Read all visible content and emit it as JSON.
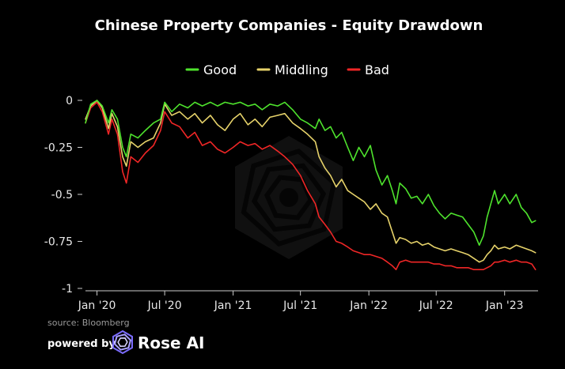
{
  "chart_data": {
    "type": "line",
    "title": "Chinese Property Companies - Equity Drawdown",
    "xlabel": "",
    "ylabel": "",
    "ylim": [
      -1,
      0
    ],
    "yticks": [
      0,
      -0.25,
      -0.5,
      -0.75,
      -1
    ],
    "ytick_labels": [
      "0",
      "-0.25",
      "-0.5",
      "-0.75",
      "-1"
    ],
    "xlim": [
      "2019-12-01",
      "2023-04-01"
    ],
    "xticks": [
      "2020-01-01",
      "2020-07-01",
      "2021-01-01",
      "2021-07-01",
      "2022-01-01",
      "2022-07-01",
      "2023-01-01"
    ],
    "xtick_labels": [
      "Jan '20",
      "Jul '20",
      "Jan '21",
      "Jul '21",
      "Jan '22",
      "Jul '22",
      "Jan '23"
    ],
    "grid": false,
    "legend_position": "top",
    "series": [
      {
        "name": "Good",
        "color": "#4ee32d",
        "points": [
          [
            "2019-12-01",
            -0.12
          ],
          [
            "2019-12-15",
            -0.02
          ],
          [
            "2020-01-01",
            0.0
          ],
          [
            "2020-01-15",
            -0.03
          ],
          [
            "2020-02-01",
            -0.12
          ],
          [
            "2020-02-10",
            -0.05
          ],
          [
            "2020-02-25",
            -0.1
          ],
          [
            "2020-03-10",
            -0.25
          ],
          [
            "2020-03-20",
            -0.3
          ],
          [
            "2020-04-01",
            -0.18
          ],
          [
            "2020-04-20",
            -0.2
          ],
          [
            "2020-05-10",
            -0.16
          ],
          [
            "2020-06-01",
            -0.12
          ],
          [
            "2020-06-20",
            -0.1
          ],
          [
            "2020-07-01",
            -0.01
          ],
          [
            "2020-07-20",
            -0.06
          ],
          [
            "2020-08-10",
            -0.02
          ],
          [
            "2020-09-01",
            -0.04
          ],
          [
            "2020-09-20",
            -0.01
          ],
          [
            "2020-10-10",
            -0.03
          ],
          [
            "2020-11-01",
            -0.01
          ],
          [
            "2020-11-20",
            -0.03
          ],
          [
            "2020-12-10",
            -0.01
          ],
          [
            "2021-01-01",
            -0.02
          ],
          [
            "2021-01-20",
            -0.01
          ],
          [
            "2021-02-10",
            -0.03
          ],
          [
            "2021-03-01",
            -0.02
          ],
          [
            "2021-03-20",
            -0.05
          ],
          [
            "2021-04-10",
            -0.02
          ],
          [
            "2021-05-01",
            -0.03
          ],
          [
            "2021-05-20",
            -0.01
          ],
          [
            "2021-06-10",
            -0.05
          ],
          [
            "2021-07-01",
            -0.1
          ],
          [
            "2021-07-20",
            -0.12
          ],
          [
            "2021-08-10",
            -0.15
          ],
          [
            "2021-08-20",
            -0.1
          ],
          [
            "2021-09-05",
            -0.16
          ],
          [
            "2021-09-20",
            -0.14
          ],
          [
            "2021-10-05",
            -0.2
          ],
          [
            "2021-10-20",
            -0.17
          ],
          [
            "2021-11-05",
            -0.25
          ],
          [
            "2021-11-20",
            -0.32
          ],
          [
            "2021-12-05",
            -0.25
          ],
          [
            "2021-12-20",
            -0.3
          ],
          [
            "2022-01-05",
            -0.24
          ],
          [
            "2022-01-20",
            -0.37
          ],
          [
            "2022-02-05",
            -0.45
          ],
          [
            "2022-02-20",
            -0.4
          ],
          [
            "2022-03-05",
            -0.48
          ],
          [
            "2022-03-15",
            -0.55
          ],
          [
            "2022-03-25",
            -0.44
          ],
          [
            "2022-04-10",
            -0.47
          ],
          [
            "2022-04-25",
            -0.52
          ],
          [
            "2022-05-10",
            -0.51
          ],
          [
            "2022-05-25",
            -0.55
          ],
          [
            "2022-06-10",
            -0.5
          ],
          [
            "2022-06-25",
            -0.56
          ],
          [
            "2022-07-10",
            -0.6
          ],
          [
            "2022-07-25",
            -0.63
          ],
          [
            "2022-08-10",
            -0.6
          ],
          [
            "2022-08-25",
            -0.61
          ],
          [
            "2022-09-10",
            -0.62
          ],
          [
            "2022-09-25",
            -0.66
          ],
          [
            "2022-10-10",
            -0.7
          ],
          [
            "2022-10-25",
            -0.77
          ],
          [
            "2022-11-05",
            -0.72
          ],
          [
            "2022-11-15",
            -0.62
          ],
          [
            "2022-11-25",
            -0.55
          ],
          [
            "2022-12-05",
            -0.48
          ],
          [
            "2022-12-15",
            -0.55
          ],
          [
            "2023-01-01",
            -0.5
          ],
          [
            "2023-01-15",
            -0.55
          ],
          [
            "2023-02-01",
            -0.5
          ],
          [
            "2023-02-15",
            -0.57
          ],
          [
            "2023-03-01",
            -0.6
          ],
          [
            "2023-03-15",
            -0.65
          ],
          [
            "2023-03-25",
            -0.64
          ]
        ]
      },
      {
        "name": "Middling",
        "color": "#e6d26a",
        "points": [
          [
            "2019-12-01",
            -0.1
          ],
          [
            "2019-12-15",
            -0.03
          ],
          [
            "2020-01-01",
            0.0
          ],
          [
            "2020-01-15",
            -0.04
          ],
          [
            "2020-02-01",
            -0.15
          ],
          [
            "2020-02-10",
            -0.07
          ],
          [
            "2020-02-25",
            -0.14
          ],
          [
            "2020-03-10",
            -0.3
          ],
          [
            "2020-03-20",
            -0.35
          ],
          [
            "2020-04-01",
            -0.22
          ],
          [
            "2020-04-20",
            -0.25
          ],
          [
            "2020-05-10",
            -0.22
          ],
          [
            "2020-06-01",
            -0.2
          ],
          [
            "2020-06-20",
            -0.12
          ],
          [
            "2020-07-01",
            -0.02
          ],
          [
            "2020-07-20",
            -0.08
          ],
          [
            "2020-08-10",
            -0.06
          ],
          [
            "2020-09-01",
            -0.1
          ],
          [
            "2020-09-20",
            -0.07
          ],
          [
            "2020-10-10",
            -0.12
          ],
          [
            "2020-11-01",
            -0.08
          ],
          [
            "2020-11-20",
            -0.13
          ],
          [
            "2020-12-10",
            -0.16
          ],
          [
            "2021-01-01",
            -0.1
          ],
          [
            "2021-01-20",
            -0.07
          ],
          [
            "2021-02-10",
            -0.13
          ],
          [
            "2021-03-01",
            -0.1
          ],
          [
            "2021-03-20",
            -0.14
          ],
          [
            "2021-04-10",
            -0.09
          ],
          [
            "2021-05-01",
            -0.08
          ],
          [
            "2021-05-20",
            -0.07
          ],
          [
            "2021-06-10",
            -0.12
          ],
          [
            "2021-07-01",
            -0.15
          ],
          [
            "2021-07-20",
            -0.18
          ],
          [
            "2021-08-10",
            -0.22
          ],
          [
            "2021-08-20",
            -0.3
          ],
          [
            "2021-09-05",
            -0.36
          ],
          [
            "2021-09-20",
            -0.4
          ],
          [
            "2021-10-05",
            -0.46
          ],
          [
            "2021-10-20",
            -0.42
          ],
          [
            "2021-11-05",
            -0.48
          ],
          [
            "2021-11-20",
            -0.5
          ],
          [
            "2021-12-05",
            -0.52
          ],
          [
            "2021-12-20",
            -0.54
          ],
          [
            "2022-01-05",
            -0.58
          ],
          [
            "2022-01-20",
            -0.55
          ],
          [
            "2022-02-05",
            -0.6
          ],
          [
            "2022-02-20",
            -0.62
          ],
          [
            "2022-03-05",
            -0.7
          ],
          [
            "2022-03-15",
            -0.76
          ],
          [
            "2022-03-25",
            -0.73
          ],
          [
            "2022-04-10",
            -0.74
          ],
          [
            "2022-04-25",
            -0.76
          ],
          [
            "2022-05-10",
            -0.75
          ],
          [
            "2022-05-25",
            -0.77
          ],
          [
            "2022-06-10",
            -0.76
          ],
          [
            "2022-06-25",
            -0.78
          ],
          [
            "2022-07-10",
            -0.79
          ],
          [
            "2022-07-25",
            -0.8
          ],
          [
            "2022-08-10",
            -0.79
          ],
          [
            "2022-08-25",
            -0.8
          ],
          [
            "2022-09-10",
            -0.81
          ],
          [
            "2022-09-25",
            -0.82
          ],
          [
            "2022-10-10",
            -0.84
          ],
          [
            "2022-10-25",
            -0.86
          ],
          [
            "2022-11-05",
            -0.85
          ],
          [
            "2022-11-15",
            -0.82
          ],
          [
            "2022-11-25",
            -0.8
          ],
          [
            "2022-12-05",
            -0.77
          ],
          [
            "2022-12-15",
            -0.79
          ],
          [
            "2023-01-01",
            -0.78
          ],
          [
            "2023-01-15",
            -0.79
          ],
          [
            "2023-02-01",
            -0.77
          ],
          [
            "2023-02-15",
            -0.78
          ],
          [
            "2023-03-01",
            -0.79
          ],
          [
            "2023-03-15",
            -0.8
          ],
          [
            "2023-03-25",
            -0.81
          ]
        ]
      },
      {
        "name": "Bad",
        "color": "#ef2626",
        "points": [
          [
            "2019-12-01",
            -0.12
          ],
          [
            "2019-12-15",
            -0.04
          ],
          [
            "2020-01-01",
            -0.01
          ],
          [
            "2020-01-15",
            -0.06
          ],
          [
            "2020-02-01",
            -0.18
          ],
          [
            "2020-02-10",
            -0.1
          ],
          [
            "2020-02-25",
            -0.18
          ],
          [
            "2020-03-10",
            -0.38
          ],
          [
            "2020-03-20",
            -0.44
          ],
          [
            "2020-04-01",
            -0.3
          ],
          [
            "2020-04-20",
            -0.33
          ],
          [
            "2020-05-10",
            -0.28
          ],
          [
            "2020-06-01",
            -0.24
          ],
          [
            "2020-06-20",
            -0.16
          ],
          [
            "2020-07-01",
            -0.06
          ],
          [
            "2020-07-20",
            -0.12
          ],
          [
            "2020-08-10",
            -0.14
          ],
          [
            "2020-09-01",
            -0.2
          ],
          [
            "2020-09-20",
            -0.17
          ],
          [
            "2020-10-10",
            -0.24
          ],
          [
            "2020-11-01",
            -0.22
          ],
          [
            "2020-11-20",
            -0.26
          ],
          [
            "2020-12-10",
            -0.28
          ],
          [
            "2021-01-01",
            -0.25
          ],
          [
            "2021-01-20",
            -0.22
          ],
          [
            "2021-02-10",
            -0.24
          ],
          [
            "2021-03-01",
            -0.23
          ],
          [
            "2021-03-20",
            -0.26
          ],
          [
            "2021-04-10",
            -0.24
          ],
          [
            "2021-05-01",
            -0.27
          ],
          [
            "2021-05-20",
            -0.3
          ],
          [
            "2021-06-10",
            -0.34
          ],
          [
            "2021-07-01",
            -0.4
          ],
          [
            "2021-07-20",
            -0.48
          ],
          [
            "2021-08-10",
            -0.55
          ],
          [
            "2021-08-20",
            -0.62
          ],
          [
            "2021-09-05",
            -0.66
          ],
          [
            "2021-09-20",
            -0.7
          ],
          [
            "2021-10-05",
            -0.75
          ],
          [
            "2021-10-20",
            -0.76
          ],
          [
            "2021-11-05",
            -0.78
          ],
          [
            "2021-11-20",
            -0.8
          ],
          [
            "2021-12-05",
            -0.81
          ],
          [
            "2021-12-20",
            -0.82
          ],
          [
            "2022-01-05",
            -0.82
          ],
          [
            "2022-01-20",
            -0.83
          ],
          [
            "2022-02-05",
            -0.84
          ],
          [
            "2022-02-20",
            -0.86
          ],
          [
            "2022-03-05",
            -0.88
          ],
          [
            "2022-03-15",
            -0.9
          ],
          [
            "2022-03-25",
            -0.86
          ],
          [
            "2022-04-10",
            -0.85
          ],
          [
            "2022-04-25",
            -0.86
          ],
          [
            "2022-05-10",
            -0.86
          ],
          [
            "2022-05-25",
            -0.86
          ],
          [
            "2022-06-10",
            -0.86
          ],
          [
            "2022-06-25",
            -0.87
          ],
          [
            "2022-07-10",
            -0.87
          ],
          [
            "2022-07-25",
            -0.88
          ],
          [
            "2022-08-10",
            -0.88
          ],
          [
            "2022-08-25",
            -0.89
          ],
          [
            "2022-09-10",
            -0.89
          ],
          [
            "2022-09-25",
            -0.89
          ],
          [
            "2022-10-10",
            -0.9
          ],
          [
            "2022-10-25",
            -0.9
          ],
          [
            "2022-11-05",
            -0.9
          ],
          [
            "2022-11-15",
            -0.89
          ],
          [
            "2022-11-25",
            -0.88
          ],
          [
            "2022-12-05",
            -0.86
          ],
          [
            "2022-12-15",
            -0.86
          ],
          [
            "2023-01-01",
            -0.85
          ],
          [
            "2023-01-15",
            -0.86
          ],
          [
            "2023-02-01",
            -0.85
          ],
          [
            "2023-02-15",
            -0.86
          ],
          [
            "2023-03-01",
            -0.86
          ],
          [
            "2023-03-15",
            -0.87
          ],
          [
            "2023-03-25",
            -0.9
          ]
        ]
      }
    ]
  },
  "footer": {
    "source": "source: Bloomberg",
    "powered_by": "powered by",
    "brand": "Rose AI"
  },
  "icons": {
    "brand_logo": "rose-ai-logo-icon",
    "watermark": "rose-ai-watermark-icon"
  }
}
